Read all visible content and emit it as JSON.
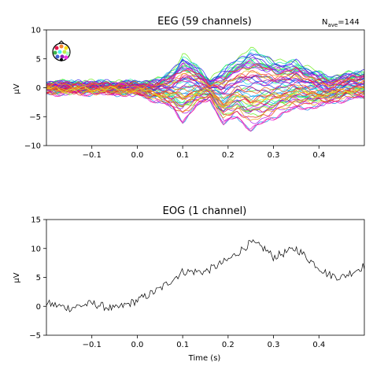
{
  "chart_data": [
    {
      "type": "line",
      "title": "EEG (59 channels)",
      "annotation_prefix": "N",
      "annotation_sub": "ave",
      "annotation_value": "=144",
      "ylabel": "µV",
      "xlabel": "",
      "xlim": [
        -0.2,
        0.5
      ],
      "ylim": [
        -10,
        10
      ],
      "x_ticks": [
        -0.1,
        0.0,
        0.1,
        0.2,
        0.3,
        0.4
      ],
      "x_tick_labels": [
        "−0.1",
        "0.0",
        "0.1",
        "0.2",
        "0.3",
        "0.4"
      ],
      "y_ticks": [
        -10,
        -5,
        0,
        5,
        10
      ],
      "y_tick_labels": [
        "−10",
        "−5",
        "0",
        "5",
        "10"
      ],
      "grid": false,
      "legend": "sensor-location inset, top-left",
      "channel_count": 59,
      "series_note": "59 overlaid channel traces colored by sensor position",
      "envelope": {
        "x": [
          -0.2,
          -0.1,
          0.0,
          0.05,
          0.08,
          0.1,
          0.13,
          0.16,
          0.19,
          0.22,
          0.25,
          0.28,
          0.32,
          0.35,
          0.38,
          0.42,
          0.46,
          0.5
        ],
        "upper": [
          1.0,
          1.0,
          1.0,
          1.5,
          3.5,
          6.0,
          4.0,
          1.5,
          3.5,
          5.5,
          7.0,
          6.0,
          4.5,
          5.0,
          3.5,
          2.0,
          2.5,
          3.0
        ],
        "lower": [
          -1.0,
          -1.0,
          -1.2,
          -2.5,
          -4.0,
          -6.0,
          -3.5,
          -2.0,
          -6.5,
          -5.5,
          -7.5,
          -6.5,
          -4.5,
          -4.0,
          -3.5,
          -3.0,
          -2.0,
          -2.0
        ]
      }
    },
    {
      "type": "line",
      "title": "EOG (1 channel)",
      "xlabel": "Time (s)",
      "ylabel": "µV",
      "xlim": [
        -0.2,
        0.5
      ],
      "ylim": [
        -5,
        15
      ],
      "x_ticks": [
        -0.1,
        0.0,
        0.1,
        0.2,
        0.3,
        0.4
      ],
      "x_tick_labels": [
        "−0.1",
        "0.0",
        "0.1",
        "0.2",
        "0.3",
        "0.4"
      ],
      "y_ticks": [
        -5,
        0,
        5,
        10,
        15
      ],
      "y_tick_labels": [
        "−5",
        "0",
        "5",
        "10",
        "15"
      ],
      "grid": false,
      "series": [
        {
          "x": [
            -0.2,
            -0.15,
            -0.1,
            -0.05,
            0.0,
            0.05,
            0.1,
            0.15,
            0.2,
            0.25,
            0.28,
            0.3,
            0.35,
            0.38,
            0.42,
            0.45,
            0.5
          ],
          "values": [
            0.5,
            -0.3,
            0.5,
            -0.5,
            1.0,
            3.0,
            6.0,
            6.0,
            8.0,
            11.0,
            10.0,
            8.5,
            10.0,
            8.0,
            5.5,
            5.0,
            7.0
          ]
        }
      ]
    }
  ]
}
